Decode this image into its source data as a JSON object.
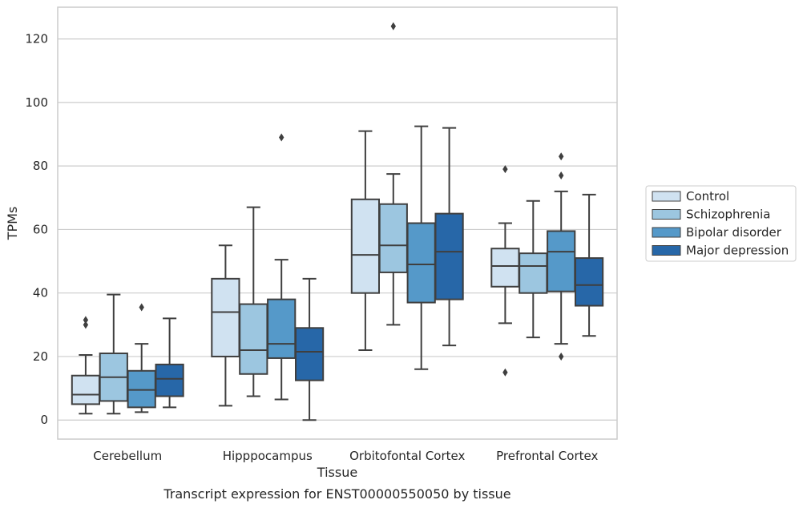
{
  "chart_data": {
    "type": "box",
    "title": "",
    "caption": "Transcript expression for ENST00000550050 by tissue",
    "xlabel": "Tissue",
    "ylabel": "TPMs",
    "ylim": [
      -6,
      130
    ],
    "yticks": [
      0,
      20,
      40,
      60,
      80,
      100,
      120
    ],
    "grid": "horizontal",
    "legend_position": "right",
    "categories": [
      "Cerebellum",
      "Hipppocampus",
      "Orbitofontal Cortex",
      "Prefrontal Cortex"
    ],
    "series": [
      {
        "name": "Control",
        "color": "#d0e2f1",
        "boxes": [
          {
            "whislo": 2,
            "q1": 5,
            "med": 8,
            "q3": 14,
            "whishi": 20.5,
            "fliers": [
              30,
              31.5
            ]
          },
          {
            "whislo": 4.5,
            "q1": 20,
            "med": 34,
            "q3": 44.5,
            "whishi": 55,
            "fliers": []
          },
          {
            "whislo": 22,
            "q1": 40,
            "med": 52,
            "q3": 69.5,
            "whishi": 91,
            "fliers": []
          },
          {
            "whislo": 30.5,
            "q1": 42,
            "med": 48.5,
            "q3": 54,
            "whishi": 62,
            "fliers": [
              15,
              79
            ]
          }
        ]
      },
      {
        "name": "Schizophrenia",
        "color": "#9cc6e0",
        "boxes": [
          {
            "whislo": 2,
            "q1": 6,
            "med": 13.5,
            "q3": 21,
            "whishi": 39.5,
            "fliers": []
          },
          {
            "whislo": 7.5,
            "q1": 14.5,
            "med": 22,
            "q3": 36.5,
            "whishi": 67,
            "fliers": []
          },
          {
            "whislo": 30,
            "q1": 46.5,
            "med": 55,
            "q3": 68,
            "whishi": 77.5,
            "fliers": [
              124
            ]
          },
          {
            "whislo": 26,
            "q1": 40,
            "med": 48.5,
            "q3": 52.5,
            "whishi": 69,
            "fliers": []
          }
        ]
      },
      {
        "name": "Bipolar disorder",
        "color": "#5599c9",
        "boxes": [
          {
            "whislo": 2.5,
            "q1": 4,
            "med": 9.5,
            "q3": 15.5,
            "whishi": 24,
            "fliers": [
              35.5
            ]
          },
          {
            "whislo": 6.5,
            "q1": 19.5,
            "med": 24,
            "q3": 38,
            "whishi": 50.5,
            "fliers": [
              89
            ]
          },
          {
            "whislo": 16,
            "q1": 37,
            "med": 49,
            "q3": 62,
            "whishi": 92.5,
            "fliers": []
          },
          {
            "whislo": 24,
            "q1": 40.5,
            "med": 53,
            "q3": 59.5,
            "whishi": 72,
            "fliers": [
              20,
              77,
              83
            ]
          }
        ]
      },
      {
        "name": "Major depression",
        "color": "#2767a8",
        "boxes": [
          {
            "whislo": 4,
            "q1": 7.5,
            "med": 13,
            "q3": 17.5,
            "whishi": 32,
            "fliers": []
          },
          {
            "whislo": 0,
            "q1": 12.5,
            "med": 21.5,
            "q3": 29,
            "whishi": 44.5,
            "fliers": []
          },
          {
            "whislo": 23.5,
            "q1": 38,
            "med": 53,
            "q3": 65,
            "whishi": 92,
            "fliers": []
          },
          {
            "whislo": 26.5,
            "q1": 36,
            "med": 42.5,
            "q3": 51,
            "whishi": 71,
            "fliers": []
          }
        ]
      }
    ]
  }
}
